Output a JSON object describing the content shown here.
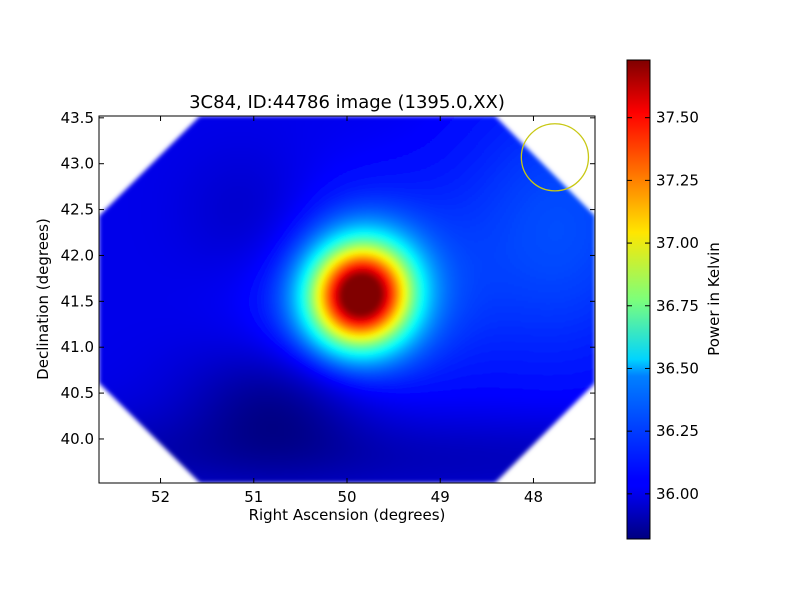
{
  "chart_data": {
    "type": "heatmap",
    "title": "3C84, ID:44786 image (1395.0,XX)",
    "xlabel": "Right Ascension (degrees)",
    "ylabel": "Declination (degrees)",
    "xlim": [
      52.66,
      47.34
    ],
    "ylim": [
      39.52,
      43.52
    ],
    "x_ticks": [
      52,
      51,
      50,
      49,
      48
    ],
    "x_tick_labels": [
      "52",
      "51",
      "50",
      "49",
      "48"
    ],
    "y_ticks": [
      40.0,
      40.5,
      41.0,
      41.5,
      42.0,
      42.5,
      43.0,
      43.5
    ],
    "y_tick_labels": [
      "40.0",
      "40.5",
      "41.0",
      "41.5",
      "42.0",
      "42.5",
      "43.0",
      "43.5"
    ],
    "colorbar": {
      "label": "Power in Kelvin",
      "colormap": "jet",
      "range": [
        35.82,
        37.73
      ],
      "ticks": [
        36.0,
        36.25,
        36.5,
        36.75,
        37.0,
        37.25,
        37.5
      ],
      "tick_labels": [
        "36.00",
        "36.25",
        "36.50",
        "36.75",
        "37.00",
        "37.25",
        "37.50"
      ]
    },
    "field": {
      "background": 36.02,
      "peak": {
        "ra": 49.85,
        "dec": 41.57,
        "value": 37.72
      },
      "minimum": {
        "ra": 50.7,
        "dec": 40.42,
        "value": 35.84
      },
      "upper_right_region_value": 36.2
    },
    "beam_marker": {
      "shape": "circle",
      "ra": 47.77,
      "dec": 43.07,
      "radius_deg": 0.36,
      "color": "#c8c814"
    }
  }
}
